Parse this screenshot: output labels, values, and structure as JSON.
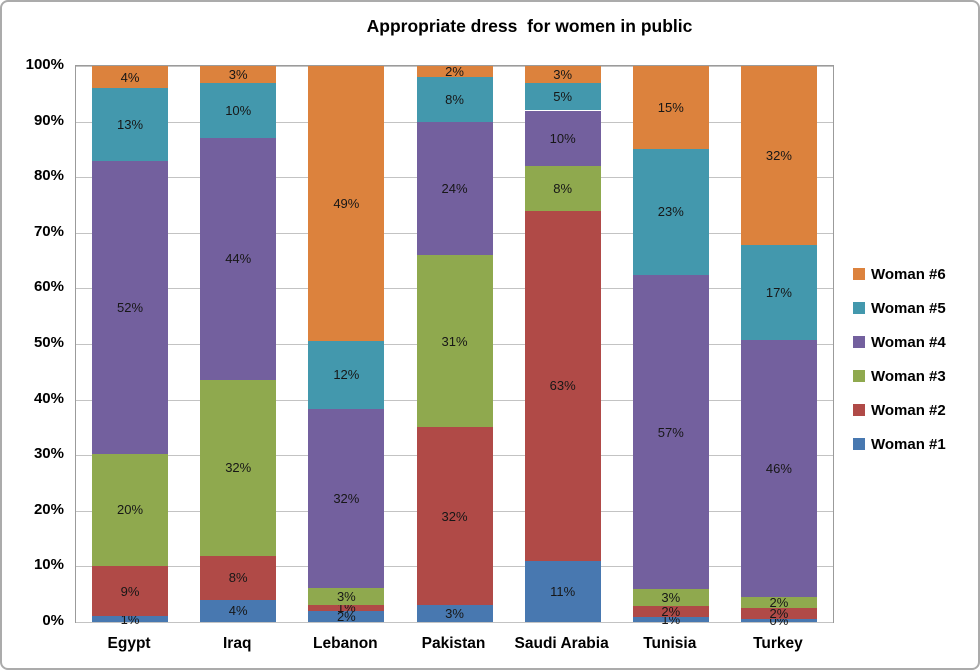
{
  "chart_data": {
    "type": "bar",
    "stacked": true,
    "title": "Appropriate dress  for women in public",
    "categories": [
      "Egypt",
      "Iraq",
      "Lebanon",
      "Pakistan",
      "Saudi Arabia",
      "Tunisia",
      "Turkey"
    ],
    "series": [
      {
        "name": "Woman #1",
        "color": "#4878B0",
        "values": [
          1,
          4,
          2,
          3,
          11,
          1,
          0
        ]
      },
      {
        "name": "Woman #2",
        "color": "#B04A47",
        "values": [
          9,
          8,
          1,
          32,
          63,
          2,
          2
        ]
      },
      {
        "name": "Woman #3",
        "color": "#8FA94E",
        "values": [
          20,
          32,
          3,
          31,
          8,
          3,
          2
        ]
      },
      {
        "name": "Woman #4",
        "color": "#73609E",
        "values": [
          52,
          44,
          32,
          24,
          10,
          57,
          46
        ]
      },
      {
        "name": "Woman #5",
        "color": "#4398AD",
        "values": [
          13,
          10,
          12,
          8,
          5,
          23,
          17
        ]
      },
      {
        "name": "Woman #6",
        "color": "#DC823D",
        "values": [
          4,
          3,
          49,
          2,
          3,
          15,
          32
        ]
      }
    ],
    "value_suffix": "%",
    "y_ticks": [
      "0%",
      "10%",
      "20%",
      "30%",
      "40%",
      "50%",
      "60%",
      "70%",
      "80%",
      "90%",
      "100%"
    ],
    "ylim": [
      0,
      100
    ],
    "grid": true,
    "legend_position": "right",
    "legend_order": "reversed",
    "colors": {
      "gridline": "#C3C3C3",
      "plot_border": "#9B9B9B",
      "frame_border": "#ABABAB",
      "text": "#000000"
    }
  }
}
